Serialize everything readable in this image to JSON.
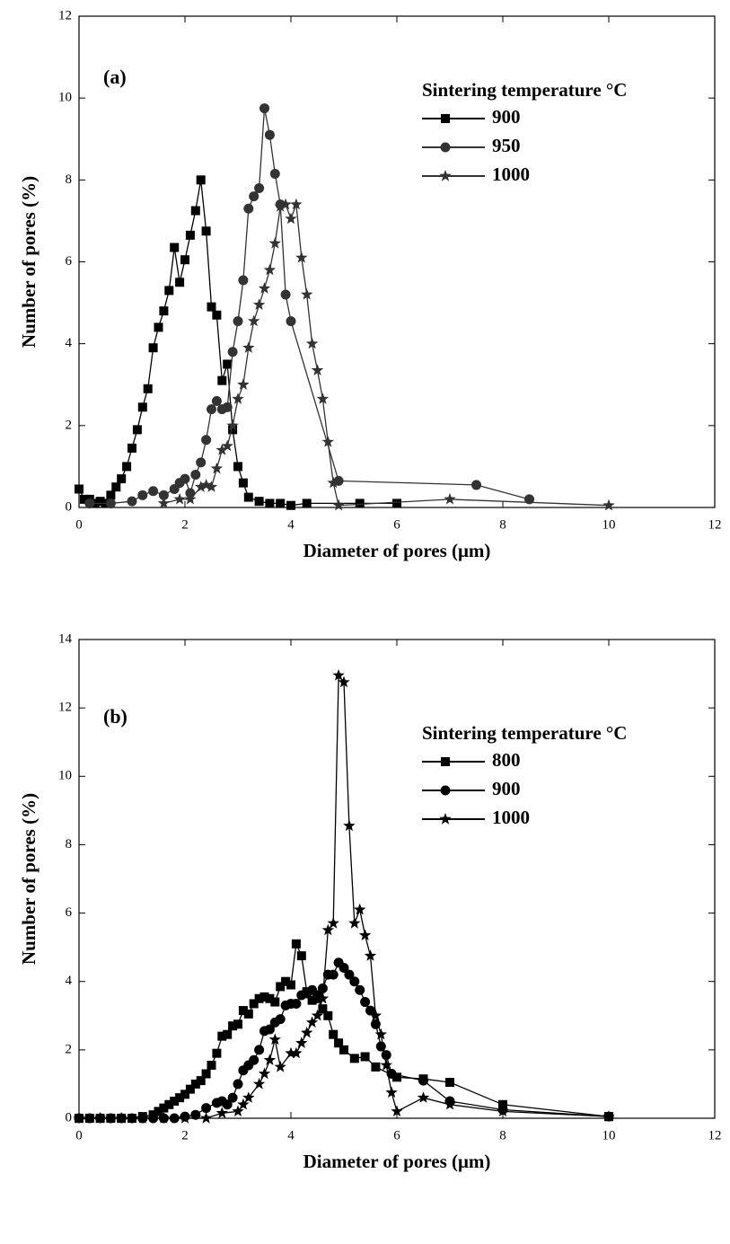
{
  "chart_data": [
    {
      "type": "line",
      "annotation": "(a)",
      "x_label": "Diameter of pores (μm)",
      "y_label": "Number of pores (%)",
      "legend_title": "Sintering temperature °C",
      "xlim": [
        0,
        12
      ],
      "xticks": [
        0,
        2,
        4,
        6,
        8,
        10,
        12
      ],
      "ylim": [
        0,
        12
      ],
      "yticks": [
        0,
        2,
        4,
        6,
        8,
        10,
        12
      ],
      "series": [
        {
          "name": "900",
          "color": "#000000",
          "marker": "square",
          "x": [
            0,
            0.1,
            0.2,
            0.3,
            0.4,
            0.5,
            0.6,
            0.7,
            0.8,
            0.9,
            1.0,
            1.1,
            1.2,
            1.3,
            1.4,
            1.5,
            1.6,
            1.7,
            1.8,
            1.9,
            2.0,
            2.1,
            2.2,
            2.3,
            2.4,
            2.5,
            2.6,
            2.7,
            2.8,
            2.9,
            3.0,
            3.1,
            3.2,
            3.4,
            3.6,
            3.8,
            4.0,
            4.3,
            5.3,
            6.0
          ],
          "values": [
            0.45,
            0.2,
            0.2,
            0.1,
            0.15,
            0.1,
            0.3,
            0.5,
            0.7,
            1.0,
            1.45,
            1.9,
            2.45,
            2.9,
            3.9,
            4.4,
            4.8,
            5.3,
            6.35,
            5.5,
            6.05,
            6.65,
            7.25,
            8.0,
            6.75,
            4.9,
            4.7,
            3.1,
            3.5,
            1.9,
            1.0,
            0.6,
            0.25,
            0.15,
            0.1,
            0.1,
            0.05,
            0.1,
            0.1,
            0.1
          ]
        },
        {
          "name": "950",
          "color": "#333333",
          "marker": "circle",
          "x": [
            0.2,
            0.6,
            1.0,
            1.2,
            1.4,
            1.6,
            1.8,
            1.9,
            2.0,
            2.1,
            2.2,
            2.3,
            2.4,
            2.5,
            2.6,
            2.7,
            2.8,
            2.9,
            3.0,
            3.1,
            3.2,
            3.3,
            3.4,
            3.5,
            3.6,
            3.7,
            3.8,
            3.9,
            4.0,
            4.9,
            7.5,
            8.5
          ],
          "values": [
            0.1,
            0.1,
            0.15,
            0.3,
            0.4,
            0.3,
            0.45,
            0.6,
            0.7,
            0.35,
            0.8,
            1.1,
            1.65,
            2.4,
            2.6,
            2.4,
            2.45,
            3.8,
            4.55,
            5.55,
            7.3,
            7.6,
            7.8,
            9.75,
            9.1,
            8.15,
            7.4,
            5.2,
            4.55,
            0.65,
            0.55,
            0.2
          ]
        },
        {
          "name": "1000",
          "color": "#333333",
          "marker": "star",
          "x": [
            1.6,
            1.9,
            2.1,
            2.3,
            2.4,
            2.5,
            2.6,
            2.7,
            2.8,
            2.9,
            3.0,
            3.1,
            3.2,
            3.3,
            3.4,
            3.5,
            3.6,
            3.7,
            3.8,
            3.9,
            4.0,
            4.1,
            4.2,
            4.3,
            4.4,
            4.5,
            4.6,
            4.7,
            4.8,
            4.9,
            7.0,
            10.0
          ],
          "values": [
            0.1,
            0.2,
            0.2,
            0.5,
            0.55,
            0.5,
            0.95,
            1.4,
            1.5,
            2.0,
            2.65,
            3.0,
            3.9,
            4.55,
            4.95,
            5.35,
            5.8,
            6.45,
            7.35,
            7.4,
            7.05,
            7.4,
            6.1,
            5.2,
            4.0,
            3.35,
            2.65,
            1.6,
            0.6,
            0.05,
            0.2,
            0.05
          ]
        }
      ]
    },
    {
      "type": "line",
      "annotation": "(b)",
      "x_label": "Diameter of pores (μm)",
      "y_label": "Number of  pores (%)",
      "legend_title": "Sintering temperature °C",
      "xlim": [
        0,
        12
      ],
      "xticks": [
        0,
        2,
        4,
        6,
        8,
        10,
        12
      ],
      "ylim": [
        0,
        14
      ],
      "yticks": [
        0,
        2,
        4,
        6,
        8,
        10,
        12,
        14
      ],
      "series": [
        {
          "name": "800",
          "color": "#000000",
          "marker": "square",
          "x": [
            0,
            0.2,
            0.4,
            0.6,
            0.8,
            1.0,
            1.2,
            1.4,
            1.5,
            1.6,
            1.7,
            1.8,
            1.9,
            2.0,
            2.1,
            2.2,
            2.3,
            2.4,
            2.5,
            2.6,
            2.7,
            2.8,
            2.9,
            3.0,
            3.1,
            3.2,
            3.3,
            3.4,
            3.5,
            3.6,
            3.7,
            3.8,
            3.9,
            4.0,
            4.1,
            4.2,
            4.3,
            4.4,
            4.5,
            4.6,
            4.7,
            4.8,
            4.9,
            5.0,
            5.2,
            5.4,
            5.6,
            6.0,
            6.5,
            7.0,
            8.0,
            10.0
          ],
          "values": [
            0,
            0,
            0,
            0,
            0,
            0,
            0.05,
            0.1,
            0.2,
            0.3,
            0.4,
            0.5,
            0.6,
            0.7,
            0.85,
            1.0,
            1.1,
            1.3,
            1.55,
            1.9,
            2.4,
            2.45,
            2.7,
            2.75,
            3.15,
            3.05,
            3.35,
            3.5,
            3.55,
            3.5,
            3.4,
            3.85,
            4.0,
            3.9,
            5.1,
            4.75,
            3.7,
            3.45,
            3.5,
            3.2,
            3.0,
            2.45,
            2.2,
            2.0,
            1.75,
            1.8,
            1.5,
            1.2,
            1.15,
            1.05,
            0.4,
            0.05
          ]
        },
        {
          "name": "900",
          "color": "#000000",
          "marker": "circle",
          "x": [
            0,
            0.2,
            0.4,
            0.6,
            0.8,
            1.0,
            1.2,
            1.4,
            1.6,
            1.8,
            2.0,
            2.2,
            2.4,
            2.6,
            2.7,
            2.8,
            2.9,
            3.0,
            3.1,
            3.2,
            3.3,
            3.4,
            3.5,
            3.6,
            3.7,
            3.8,
            3.9,
            4.0,
            4.1,
            4.2,
            4.3,
            4.4,
            4.5,
            4.6,
            4.7,
            4.8,
            4.9,
            5.0,
            5.1,
            5.2,
            5.3,
            5.4,
            5.5,
            5.6,
            5.7,
            5.8,
            5.9,
            6.5,
            7.0,
            8.0,
            10.0
          ],
          "values": [
            0,
            0,
            0,
            0,
            0,
            0,
            0,
            0,
            0,
            0,
            0.05,
            0.1,
            0.3,
            0.45,
            0.5,
            0.4,
            0.6,
            1.0,
            1.4,
            1.55,
            1.7,
            2.0,
            2.55,
            2.6,
            2.8,
            2.9,
            3.3,
            3.35,
            3.35,
            3.6,
            3.65,
            3.75,
            3.6,
            3.8,
            4.2,
            4.2,
            4.55,
            4.4,
            4.2,
            4.0,
            3.75,
            3.4,
            3.15,
            2.75,
            2.1,
            1.85,
            1.3,
            1.1,
            0.5,
            0.25,
            0.05
          ]
        },
        {
          "name": "1000",
          "color": "#000000",
          "marker": "star",
          "x": [
            0,
            0.4,
            0.8,
            1.2,
            1.6,
            2.0,
            2.4,
            2.7,
            3.0,
            3.1,
            3.2,
            3.4,
            3.5,
            3.6,
            3.7,
            3.8,
            4.0,
            4.1,
            4.2,
            4.3,
            4.4,
            4.5,
            4.6,
            4.7,
            4.8,
            4.9,
            5.0,
            5.1,
            5.2,
            5.3,
            5.4,
            5.5,
            5.6,
            5.7,
            5.8,
            5.9,
            6.0,
            6.5,
            7.0,
            8.0,
            10.0
          ],
          "values": [
            0,
            0,
            0,
            0,
            0,
            0,
            0,
            0.15,
            0.2,
            0.4,
            0.6,
            1.0,
            1.3,
            1.7,
            2.3,
            1.5,
            1.9,
            1.9,
            2.2,
            2.5,
            2.8,
            3.0,
            3.5,
            5.5,
            5.7,
            12.95,
            12.75,
            8.55,
            5.7,
            6.1,
            5.35,
            4.75,
            3.0,
            2.45,
            1.55,
            0.75,
            0.2,
            0.6,
            0.4,
            0.2,
            0.05
          ]
        }
      ]
    }
  ]
}
